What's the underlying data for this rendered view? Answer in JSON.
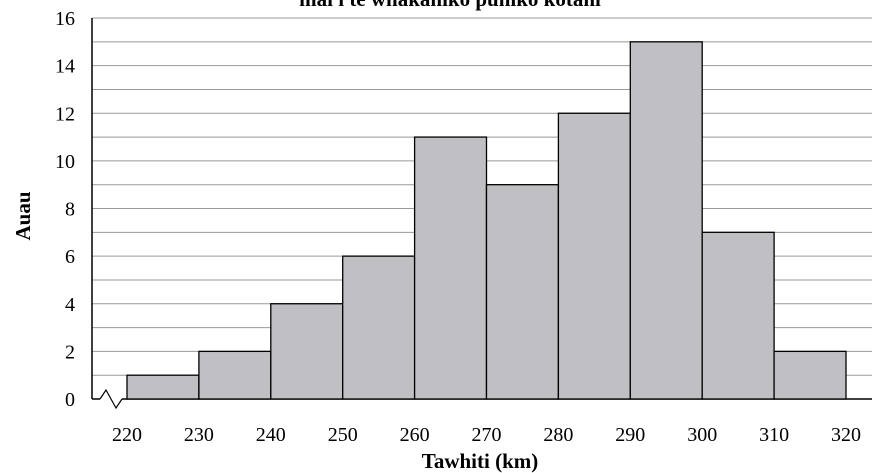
{
  "chart_data": {
    "type": "bar",
    "subtype": "histogram",
    "title": "mai i te whakaniko puniko kotahi",
    "xlabel": "Tawhiti (km)",
    "ylabel": "Auau",
    "bin_edges": [
      220,
      230,
      240,
      250,
      260,
      270,
      280,
      290,
      300,
      310,
      320
    ],
    "x_tick_labels": [
      "220",
      "230",
      "240",
      "250",
      "260",
      "270",
      "280",
      "290",
      "300",
      "310",
      "320"
    ],
    "values": [
      1,
      2,
      4,
      6,
      11,
      9,
      12,
      15,
      7,
      2
    ],
    "y_tick_labels": [
      "0",
      "2",
      "4",
      "6",
      "8",
      "10",
      "12",
      "14",
      "16"
    ],
    "ylim": [
      0,
      16
    ],
    "xlim": [
      220,
      320
    ],
    "x_axis_break": true,
    "grid": "horizontal every 1 unit, labeled every 2",
    "colors": {
      "bar_fill": "#c0c0c4",
      "bar_stroke": "#000000",
      "grid": "#999999"
    }
  }
}
